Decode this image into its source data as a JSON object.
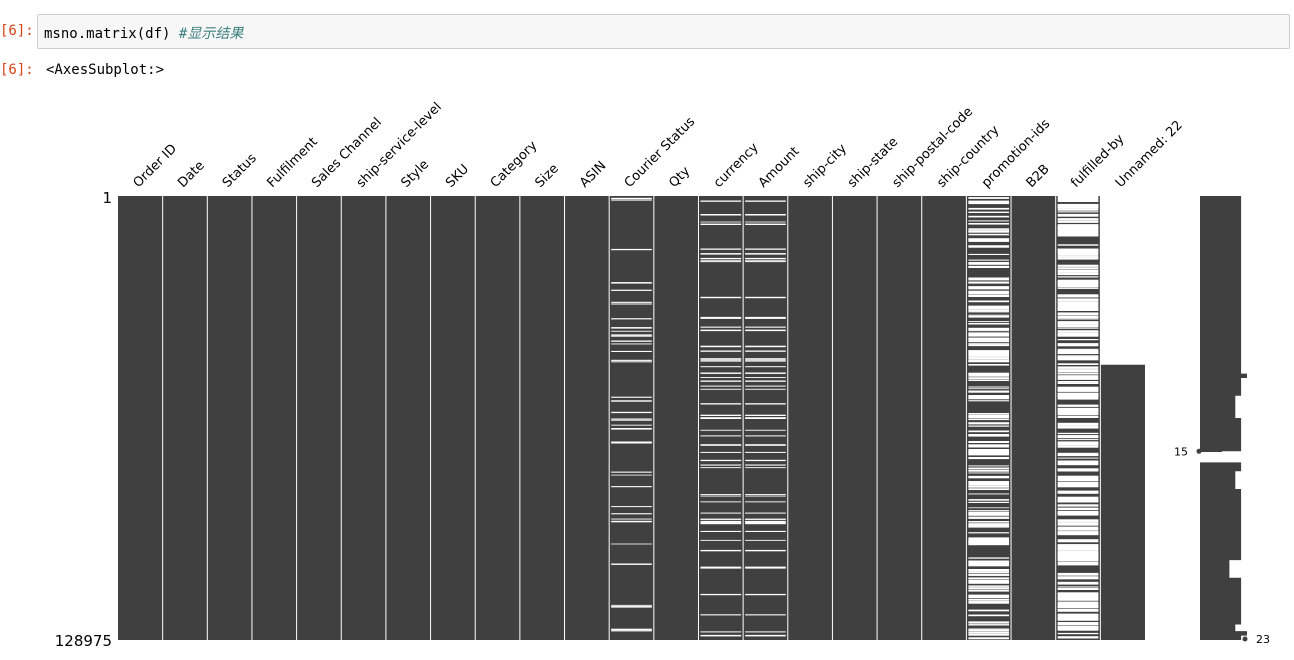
{
  "notebook": {
    "input_prompt": "[6]:",
    "output_prompt": "[6]:",
    "code": "msno.matrix(df) ",
    "code_comment": "#显示结果",
    "output_repr": "<AxesSubplot:>"
  },
  "chart_data": {
    "type": "heatmap",
    "description_free": true,
    "columns": [
      "Order ID",
      "Date",
      "Status",
      "Fulfilment",
      "Sales Channel",
      "ship-service-level",
      "Style",
      "SKU",
      "Category",
      "Size",
      "ASIN",
      "Courier Status",
      "Qty",
      "currency",
      "Amount",
      "ship-city",
      "ship-state",
      "ship-postal-code",
      "ship-country",
      "promotion-ids",
      "B2B",
      "fulfilled-by",
      "Unnamed: 22"
    ],
    "rows_total": 128975,
    "y_tick_labels": [
      "1",
      "128975"
    ],
    "fill_color": "#404040",
    "missing_color": "#ffffff",
    "missing_density": {
      "Order ID": 0,
      "Date": 0,
      "Status": 0,
      "Fulfilment": 0,
      "Sales Channel": 0,
      "ship-service-level": 0,
      "Style": 0,
      "SKU": 0,
      "Category": 0,
      "Size": 0,
      "ASIN": 0,
      "Courier Status": 0.05,
      "Qty": 0,
      "currency": 0.06,
      "Amount": 0.06,
      "ship-city": 0,
      "ship-state": 0,
      "ship-postal-code": 0,
      "ship-country": 0,
      "promotion-ids": 0.38,
      "B2B": 0,
      "fulfilled-by": 0.69,
      "Unnamed: 22": 0.38
    },
    "sparkline": {
      "range_labels": [
        "15",
        "23"
      ],
      "min_value": 15,
      "max_value": 23,
      "min_row_fraction": 0.575,
      "max_row_fraction": 1.0
    }
  }
}
